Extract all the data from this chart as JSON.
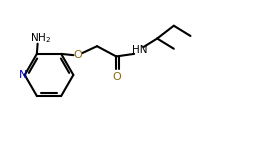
{
  "bg_color": "#ffffff",
  "line_color": "#000000",
  "n_color": "#0000cd",
  "o_color": "#8b6914",
  "line_width": 1.5,
  "figsize": [
    2.67,
    1.55
  ],
  "dpi": 100,
  "xlim": [
    0,
    10
  ],
  "ylim": [
    0,
    6
  ]
}
